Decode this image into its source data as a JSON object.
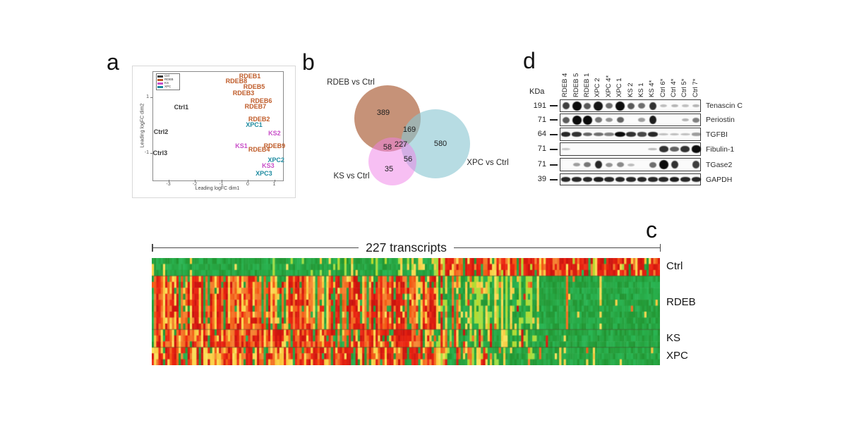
{
  "panels": {
    "a": "a",
    "b": "b",
    "c": "c",
    "d": "d"
  },
  "chart_data": [
    {
      "id": "panel-a-mds",
      "type": "scatter",
      "x_label": "Leading logFC dim1",
      "y_label": "Leading logFC dim2",
      "x_ticks": [
        -3,
        -2,
        -1,
        0,
        1
      ],
      "y_ticks": [
        1,
        -1
      ],
      "legend_position": "top-left",
      "legend": [
        {
          "label": "Ctrl",
          "color": "#3b3b3b"
        },
        {
          "label": "RDEB",
          "color": "#bf5b28"
        },
        {
          "label": "KS",
          "color": "#c84fc8"
        },
        {
          "label": "XPC",
          "color": "#1e8ba0"
        }
      ],
      "samples": [
        {
          "label": "RDEB1",
          "group": "RDEB",
          "x": 0.08,
          "y": 1.76
        },
        {
          "label": "RDEB8",
          "group": "RDEB",
          "x": -0.43,
          "y": 1.58
        },
        {
          "label": "RDEB5",
          "group": "RDEB",
          "x": 0.24,
          "y": 1.38
        },
        {
          "label": "RDEB3",
          "group": "RDEB",
          "x": -0.16,
          "y": 1.15
        },
        {
          "label": "RDEB6",
          "group": "RDEB",
          "x": 0.51,
          "y": 0.87
        },
        {
          "label": "RDEB7",
          "group": "RDEB",
          "x": 0.29,
          "y": 0.67
        },
        {
          "label": "Ctrl1",
          "group": "Ctrl",
          "x": -2.51,
          "y": 0.65
        },
        {
          "label": "RDEB2",
          "group": "RDEB",
          "x": 0.43,
          "y": 0.22
        },
        {
          "label": "XPC1",
          "group": "XPC",
          "x": 0.24,
          "y": 0.01
        },
        {
          "label": "Ctrl2",
          "group": "Ctrl",
          "x": -3.28,
          "y": -0.24
        },
        {
          "label": "KS2",
          "group": "KS",
          "x": 1.01,
          "y": -0.29
        },
        {
          "label": "KS1",
          "group": "KS",
          "x": -0.24,
          "y": -0.75
        },
        {
          "label": "RDEB9",
          "group": "RDEB",
          "x": 1.01,
          "y": -0.75
        },
        {
          "label": "RDEB4",
          "group": "RDEB",
          "x": 0.43,
          "y": -0.87
        },
        {
          "label": "Ctrl3",
          "group": "Ctrl",
          "x": -3.31,
          "y": -1.0
        },
        {
          "label": "XPC2",
          "group": "XPC",
          "x": 1.07,
          "y": -1.25
        },
        {
          "label": "KS3",
          "group": "KS",
          "x": 0.77,
          "y": -1.46
        },
        {
          "label": "XPC3",
          "group": "XPC",
          "x": 0.61,
          "y": -1.73
        }
      ]
    },
    {
      "id": "panel-b-venn",
      "type": "venn",
      "sets": [
        {
          "label": "RDEB vs Ctrl",
          "color": "#c18b6b",
          "unique": 389
        },
        {
          "label": "XPC vs Ctrl",
          "color": "#b6dbe1",
          "unique": 580
        },
        {
          "label": "KS vs Ctrl",
          "color": "#f5b9ef",
          "unique": 35
        }
      ],
      "overlaps": [
        {
          "sets": [
            "RDEB vs Ctrl",
            "XPC vs Ctrl"
          ],
          "value": 169
        },
        {
          "sets": [
            "RDEB vs Ctrl",
            "KS vs Ctrl"
          ],
          "value": 58
        },
        {
          "sets": [
            "KS vs Ctrl",
            "XPC vs Ctrl"
          ],
          "value": 56
        },
        {
          "sets": [
            "RDEB vs Ctrl",
            "KS vs Ctrl",
            "XPC vs Ctrl"
          ],
          "value": 227
        }
      ]
    },
    {
      "id": "panel-c-heatmap",
      "type": "heatmap",
      "title": "227 transcripts",
      "n_columns": 227,
      "row_groups": [
        {
          "label": "Ctrl",
          "rows": 3
        },
        {
          "label": "RDEB",
          "rows": 9
        },
        {
          "label": "KS",
          "rows": 3
        },
        {
          "label": "XPC",
          "rows": 3
        }
      ],
      "pattern": {
        "split_fraction": 0.56,
        "left_block": "Ctrl rows green (down), disease rows red/orange/yellow (up)",
        "right_block": "Ctrl rows red (up), disease rows green (down)"
      },
      "colors": {
        "up": "#e62520",
        "mid": "#f8d34e",
        "down": "#21a43c"
      },
      "seed": 7
    },
    {
      "id": "panel-d-western-blot",
      "type": "table",
      "kda_label": "KDa",
      "lane_labels": [
        "RDEB 4",
        "RDEB 5",
        "RDEB 1",
        "XPC 2",
        "XPC 4*",
        "XPC 1",
        "KS 2",
        "KS 1",
        "KS 4*",
        "Ctrl 6*",
        "Ctrl 4*",
        "Ctrl 5*",
        "Ctrl 7*"
      ],
      "rows": [
        {
          "protein": "Tenascin C",
          "mw": "191",
          "style": "blob",
          "band_intensities": [
            0.75,
            1,
            0.6,
            0.95,
            0.5,
            1,
            0.6,
            0.5,
            0.8,
            0.1,
            0.14,
            0.08,
            0.14
          ]
        },
        {
          "protein": "Periostin",
          "mw": "71",
          "style": "blob",
          "band_intensities": [
            0.6,
            1,
            1,
            0.45,
            0.3,
            0.55,
            0,
            0.25,
            0.9,
            0,
            0,
            0.15,
            0.4
          ]
        },
        {
          "protein": "TGFBI",
          "mw": "64",
          "style": "dash",
          "band_intensities": [
            0.85,
            0.8,
            0.55,
            0.5,
            0.4,
            1,
            0.8,
            0.7,
            0.85,
            0.08,
            0.1,
            0.08,
            0.25
          ]
        },
        {
          "protein": "Fibulin-1",
          "mw": "71",
          "style": "thick",
          "band_intensities": [
            0.06,
            0,
            0,
            0,
            0,
            0,
            0,
            0,
            0.12,
            0.8,
            0.55,
            0.8,
            1
          ]
        },
        {
          "protein": "TGase2",
          "mw": "71",
          "style": "blob",
          "band_intensities": [
            0,
            0.25,
            0.45,
            0.85,
            0.3,
            0.35,
            0.1,
            0,
            0.5,
            1,
            0.8,
            0,
            0.75
          ]
        },
        {
          "protein": "GAPDH",
          "mw": "39",
          "style": "dash",
          "band_intensities": [
            0.85,
            0.85,
            0.85,
            0.9,
            0.85,
            0.85,
            0.85,
            0.85,
            0.85,
            0.85,
            0.9,
            0.85,
            0.85
          ]
        }
      ]
    }
  ]
}
